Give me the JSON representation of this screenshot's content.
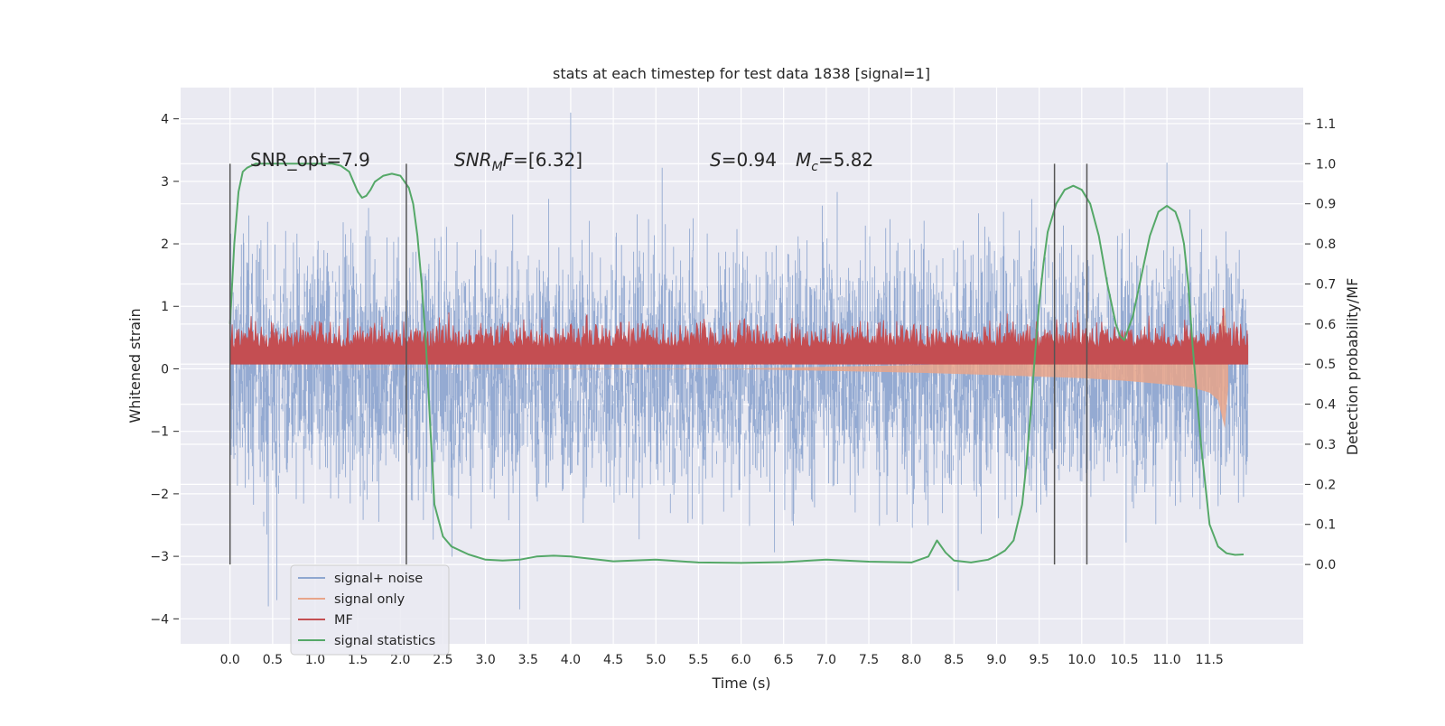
{
  "chart_data": {
    "type": "line",
    "title": "stats at each timestep for test data 1838 [signal=1]",
    "xlabel": "Time (s)",
    "ylabel_left": "Whitened strain",
    "ylabel_right": "Detection probability/MF",
    "xlim": [
      -0.58,
      12.6
    ],
    "ylim_left": [
      -4.4,
      4.5
    ],
    "ylim_right": [
      -0.198,
      1.19
    ],
    "x_ticks": [
      "0.0",
      "0.5",
      "1.0",
      "1.5",
      "2.0",
      "2.5",
      "3.0",
      "3.5",
      "4.0",
      "4.5",
      "5.0",
      "5.5",
      "6.0",
      "6.5",
      "7.0",
      "7.5",
      "8.0",
      "8.5",
      "9.0",
      "9.5",
      "10.0",
      "10.5",
      "11.0",
      "11.5"
    ],
    "y_ticks_left": [
      "4",
      "3",
      "2",
      "1",
      "0",
      "−1",
      "−2",
      "−3",
      "−4"
    ],
    "y_ticks_right": [
      "1.1",
      "1.0",
      "0.9",
      "0.8",
      "0.7",
      "0.6",
      "0.5",
      "0.4",
      "0.3",
      "0.2",
      "0.1",
      "0.0"
    ],
    "grid": true,
    "legend_position": "lower-left",
    "annotations": {
      "snr_opt": "SNR_opt=7.9",
      "snr_mf": "=[6.32]",
      "snr_mf_main": "SNR",
      "snr_mf_sub": "M",
      "snr_mf_tail": "F",
      "s_label": "S",
      "s_value": "=0.94",
      "mc_label": "M",
      "mc_sub": "c",
      "mc_value": "=5.82"
    },
    "vertical_markers_s": [
      0.0,
      2.07,
      9.68,
      10.06
    ],
    "series": [
      {
        "name": "signal+ noise",
        "color": "#8fa7d0",
        "axis": "left",
        "description_range": [
          -3.8,
          4.1
        ],
        "peaks": [
          [
            0.45,
            -3.8
          ],
          [
            0.55,
            -3.7
          ],
          [
            3.4,
            -3.85
          ],
          [
            4.0,
            4.1
          ],
          [
            8.55,
            -3.55
          ],
          [
            11.0,
            3.3
          ]
        ]
      },
      {
        "name": "signal only",
        "color": "#e8a58a",
        "axis": "left",
        "x": [
          0.0,
          6.0,
          8.0,
          9.0,
          10.0,
          10.5,
          11.0,
          11.3,
          11.5,
          11.6,
          11.68,
          11.72
        ],
        "envelope_low": [
          0.0,
          -0.005,
          -0.06,
          -0.1,
          -0.15,
          -0.19,
          -0.25,
          -0.3,
          -0.38,
          -0.5,
          -0.95,
          -0.3
        ],
        "envelope_high": [
          0.0,
          0.005,
          0.06,
          0.1,
          0.15,
          0.19,
          0.25,
          0.3,
          0.38,
          0.5,
          1.0,
          0.3
        ]
      },
      {
        "name": "MF",
        "color": "#c44e52",
        "axis": "right",
        "band": [
          0.5,
          0.62
        ],
        "spike": [
          11.66,
          0.64
        ]
      },
      {
        "name": "signal statistics",
        "color": "#55a868",
        "axis": "right",
        "x": [
          0.0,
          0.05,
          0.1,
          0.15,
          0.2,
          0.3,
          0.5,
          0.8,
          1.0,
          1.2,
          1.3,
          1.4,
          1.45,
          1.5,
          1.55,
          1.6,
          1.65,
          1.7,
          1.8,
          1.9,
          2.0,
          2.1,
          2.15,
          2.2,
          2.25,
          2.3,
          2.35,
          2.4,
          2.5,
          2.6,
          2.8,
          3.0,
          3.2,
          3.4,
          3.6,
          3.8,
          4.0,
          4.5,
          5.0,
          5.5,
          6.0,
          6.5,
          7.0,
          7.5,
          8.0,
          8.2,
          8.3,
          8.4,
          8.5,
          8.7,
          8.9,
          9.0,
          9.1,
          9.2,
          9.3,
          9.35,
          9.4,
          9.45,
          9.5,
          9.55,
          9.6,
          9.7,
          9.8,
          9.9,
          10.0,
          10.1,
          10.2,
          10.3,
          10.4,
          10.45,
          10.5,
          10.6,
          10.7,
          10.8,
          10.9,
          11.0,
          11.1,
          11.15,
          11.2,
          11.25,
          11.3,
          11.4,
          11.5,
          11.6,
          11.7,
          11.8,
          11.9
        ],
        "y": [
          0.6,
          0.8,
          0.93,
          0.98,
          0.99,
          1.0,
          1.0,
          1.0,
          1.0,
          1.0,
          0.995,
          0.98,
          0.955,
          0.93,
          0.915,
          0.92,
          0.935,
          0.955,
          0.97,
          0.975,
          0.97,
          0.94,
          0.9,
          0.82,
          0.7,
          0.55,
          0.35,
          0.15,
          0.07,
          0.045,
          0.025,
          0.012,
          0.01,
          0.012,
          0.02,
          0.022,
          0.02,
          0.008,
          0.012,
          0.005,
          0.004,
          0.006,
          0.012,
          0.007,
          0.005,
          0.02,
          0.06,
          0.03,
          0.01,
          0.005,
          0.012,
          0.022,
          0.035,
          0.06,
          0.15,
          0.25,
          0.38,
          0.52,
          0.65,
          0.75,
          0.83,
          0.9,
          0.935,
          0.945,
          0.935,
          0.9,
          0.82,
          0.7,
          0.6,
          0.57,
          0.56,
          0.62,
          0.72,
          0.82,
          0.88,
          0.895,
          0.88,
          0.85,
          0.8,
          0.7,
          0.55,
          0.3,
          0.1,
          0.045,
          0.028,
          0.024,
          0.025
        ]
      }
    ]
  }
}
